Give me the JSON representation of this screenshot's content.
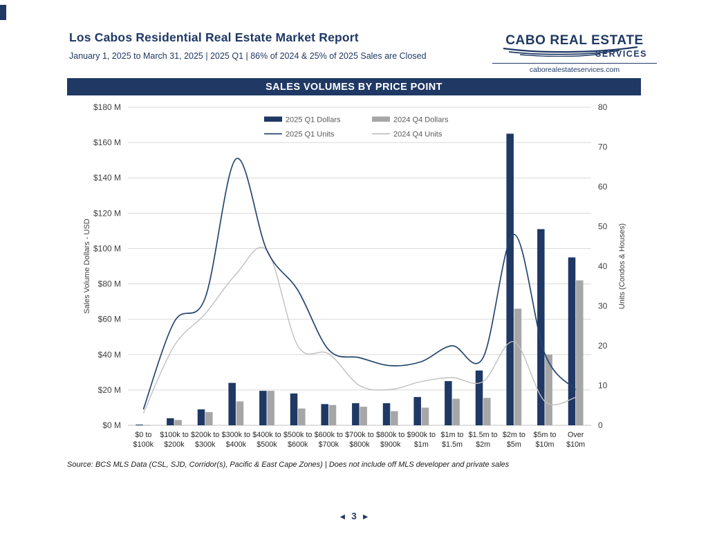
{
  "header": {
    "title": "Los Cabos Residential Real Estate Market Report",
    "subtitle": "January 1, 2025 to March 31, 2025 | 2025 Q1 | 86% of 2024 & 25% of 2025 Sales are Closed"
  },
  "logo": {
    "line1": "CABO REAL ESTATE",
    "line2": "SERVICES",
    "website": "caborealestateservices.com"
  },
  "chart_title_bar": "SALES VOLUMES BY PRICE POINT",
  "source_note": "Source:  BCS MLS Data (CSL, SJD, Corridor(s), Pacific & East Cape Zones) | Does not include off MLS developer and private sales",
  "pagination": {
    "prev_arrow": "◄",
    "page_number": "3",
    "next_arrow": "►"
  },
  "colors": {
    "navy": "#1f3864",
    "bar_gray": "#a6a6a6",
    "line_navy": "#24466e",
    "line_gray": "#bfbfbf",
    "grid": "#d9d9d9",
    "baseline": "#c0c0c0",
    "tick_text": "#404040",
    "legend_text": "#595959",
    "xlabel_text": "#262626"
  },
  "chart_data": {
    "type": "bar",
    "subtype": "combo-bar-line-dual-axis",
    "title": "SALES VOLUMES BY PRICE POINT",
    "categories": [
      "$0 to $100k",
      "$100k to $200k",
      "$200k to $300k",
      "$300k to $400k",
      "$400k to $500k",
      "$500k to $600k",
      "$600k to $700k",
      "$700k to $800k",
      "$800k to $900k",
      "$900k to $1m",
      "$1m to $1.5m",
      "$1.5m to $2m",
      "$2m to $5m",
      "$5m to $10m",
      "Over $10m"
    ],
    "series": [
      {
        "name": "2025 Q1 Dollars",
        "kind": "bar",
        "axis": "left",
        "values": [
          0.4,
          4,
          9,
          24,
          19.5,
          18,
          12,
          12.5,
          12.5,
          16,
          25,
          31,
          165,
          111,
          95
        ]
      },
      {
        "name": "2024 Q4 Dollars",
        "kind": "bar",
        "axis": "left",
        "values": [
          0.2,
          3,
          7.5,
          13.5,
          19.5,
          9.5,
          11.5,
          10.5,
          8,
          10,
          15,
          15.5,
          66,
          40,
          82
        ]
      },
      {
        "name": "2025 Q1 Units",
        "kind": "line",
        "axis": "right",
        "values": [
          4,
          26,
          32,
          67,
          44,
          34,
          19,
          17,
          15,
          16,
          20,
          17,
          48,
          18,
          9
        ]
      },
      {
        "name": "2024 Q4 Units",
        "kind": "line",
        "axis": "right",
        "values": [
          3,
          20,
          28,
          38,
          44,
          20,
          18,
          10,
          9,
          11,
          12,
          11,
          21,
          6,
          7
        ]
      }
    ],
    "left_axis": {
      "label": "Sales Volume Dollars - USD",
      "min": 0,
      "max": 180,
      "step": 20,
      "tick_prefix": "$",
      "tick_suffix": " M"
    },
    "right_axis": {
      "label": "Units (Condos & Houses)",
      "min": 0,
      "max": 80,
      "step": 10
    },
    "grid": true,
    "legend_position": "top-inside"
  }
}
